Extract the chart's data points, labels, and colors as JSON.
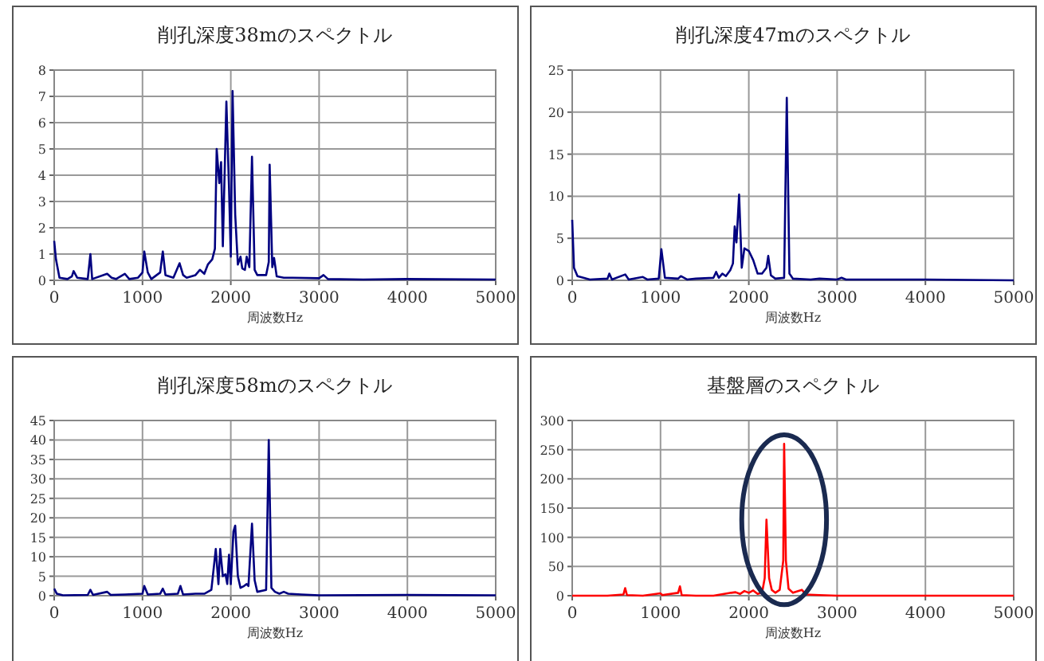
{
  "chart_data": [
    {
      "type": "line",
      "title": "削孔深度38mのスペクトル",
      "xlabel": "周波数Hz",
      "xlim": [
        0,
        5000
      ],
      "xticks": [
        0,
        1000,
        2000,
        3000,
        4000,
        5000
      ],
      "ylim": [
        0,
        8
      ],
      "yticks": [
        0,
        1,
        2,
        3,
        4,
        5,
        6,
        7,
        8
      ],
      "grid": true,
      "marker": "none",
      "series": [
        {
          "color": "#000080",
          "x": [
            0,
            20,
            60,
            150,
            200,
            220,
            260,
            380,
            410,
            430,
            600,
            650,
            700,
            750,
            800,
            850,
            950,
            1000,
            1020,
            1060,
            1100,
            1200,
            1230,
            1260,
            1350,
            1420,
            1460,
            1500,
            1600,
            1650,
            1700,
            1740,
            1790,
            1820,
            1840,
            1870,
            1890,
            1910,
            1950,
            1980,
            2000,
            2020,
            2050,
            2080,
            2110,
            2130,
            2160,
            2180,
            2210,
            2240,
            2270,
            2300,
            2400,
            2430,
            2440,
            2470,
            2490,
            2520,
            2600,
            2700,
            3000,
            3050,
            3100,
            3500,
            4000,
            5000
          ],
          "values": [
            1.5,
            0.8,
            0.1,
            0.05,
            0.15,
            0.35,
            0.1,
            0.05,
            1.0,
            0.05,
            0.25,
            0.1,
            0.05,
            0.15,
            0.25,
            0.05,
            0.1,
            0.3,
            1.1,
            0.3,
            0.05,
            0.3,
            1.1,
            0.2,
            0.1,
            0.65,
            0.2,
            0.1,
            0.2,
            0.4,
            0.25,
            0.6,
            0.8,
            1.2,
            5.0,
            3.7,
            4.5,
            1.3,
            6.8,
            3.5,
            0.9,
            7.2,
            2.5,
            0.6,
            0.9,
            0.45,
            0.4,
            0.9,
            0.5,
            4.7,
            0.4,
            0.2,
            0.2,
            0.7,
            4.4,
            0.5,
            0.85,
            0.15,
            0.1,
            0.1,
            0.08,
            0.2,
            0.05,
            0.03,
            0.05,
            0.03
          ]
        }
      ]
    },
    {
      "type": "line",
      "title": "削孔深度47mのスペクトル",
      "xlabel": "周波数Hz",
      "xlim": [
        0,
        5000
      ],
      "xticks": [
        0,
        1000,
        2000,
        3000,
        4000,
        5000
      ],
      "ylim": [
        0,
        25
      ],
      "yticks": [
        0,
        5,
        10,
        15,
        20,
        25
      ],
      "grid": true,
      "marker": "none",
      "series": [
        {
          "color": "#000080",
          "x": [
            0,
            20,
            60,
            200,
            400,
            420,
            450,
            600,
            640,
            800,
            850,
            980,
            1010,
            1050,
            1200,
            1230,
            1300,
            1400,
            1600,
            1630,
            1660,
            1700,
            1740,
            1790,
            1820,
            1840,
            1860,
            1890,
            1920,
            1950,
            2000,
            2050,
            2100,
            2150,
            2200,
            2220,
            2250,
            2300,
            2400,
            2430,
            2460,
            2500,
            2700,
            2800,
            3000,
            3050,
            3100,
            4000,
            5000
          ],
          "values": [
            7.2,
            1.5,
            0.5,
            0.1,
            0.2,
            0.8,
            0.1,
            0.7,
            0.1,
            0.4,
            0.1,
            0.2,
            3.7,
            0.3,
            0.2,
            0.5,
            0.1,
            0.2,
            0.3,
            1.0,
            0.3,
            0.8,
            0.5,
            1.2,
            2.0,
            6.4,
            4.5,
            10.2,
            1.5,
            3.8,
            3.5,
            2.4,
            0.8,
            0.8,
            1.5,
            2.9,
            0.6,
            0.2,
            0.3,
            21.7,
            0.8,
            0.2,
            0.1,
            0.2,
            0.1,
            0.3,
            0.1,
            0.1,
            0
          ]
        }
      ]
    },
    {
      "type": "line",
      "title": "削孔深度58mのスペクトル",
      "xlabel": "周波数Hz",
      "xlim": [
        0,
        5000
      ],
      "xticks": [
        0,
        1000,
        2000,
        3000,
        4000,
        5000
      ],
      "ylim": [
        0,
        45
      ],
      "yticks": [
        0,
        5,
        10,
        15,
        20,
        25,
        30,
        35,
        40,
        45
      ],
      "grid": true,
      "marker": "none",
      "series": [
        {
          "color": "#000080",
          "x": [
            0,
            30,
            100,
            380,
            410,
            440,
            600,
            640,
            800,
            1000,
            1020,
            1060,
            1200,
            1230,
            1260,
            1400,
            1430,
            1460,
            1600,
            1700,
            1780,
            1830,
            1860,
            1880,
            1910,
            1940,
            1960,
            1980,
            2000,
            2030,
            2050,
            2080,
            2110,
            2150,
            2180,
            2200,
            2240,
            2270,
            2300,
            2400,
            2430,
            2460,
            2500,
            2550,
            2600,
            2650,
            2800,
            3000,
            4000,
            5000
          ],
          "values": [
            1.8,
            0.5,
            0.1,
            0.2,
            1.5,
            0.2,
            1.0,
            0.2,
            0.3,
            0.5,
            2.5,
            0.3,
            0.5,
            1.8,
            0.3,
            0.5,
            2.5,
            0.3,
            0.5,
            0.5,
            1.5,
            12,
            3,
            12,
            5,
            5.5,
            3,
            10.5,
            3,
            16.5,
            18,
            5,
            2,
            2.5,
            3,
            2.5,
            18.5,
            4,
            1.0,
            1.5,
            40,
            2,
            1.0,
            0.5,
            1.0,
            0.5,
            0.3,
            0.1,
            0.2,
            0.1
          ]
        }
      ]
    },
    {
      "type": "line",
      "title": "基盤層のスペクトル",
      "xlabel": "周波数Hz",
      "xlim": [
        0,
        5000
      ],
      "xticks": [
        0,
        1000,
        2000,
        3000,
        4000,
        5000
      ],
      "ylim": [
        0,
        300
      ],
      "yticks": [
        0,
        50,
        100,
        150,
        200,
        250,
        300
      ],
      "grid": true,
      "marker": "none",
      "series": [
        {
          "color": "#ff0000",
          "x": [
            0,
            400,
            580,
            600,
            620,
            800,
            1000,
            1020,
            1200,
            1220,
            1240,
            1400,
            1600,
            1800,
            1850,
            1900,
            1950,
            2000,
            2050,
            2100,
            2150,
            2180,
            2200,
            2230,
            2260,
            2300,
            2350,
            2390,
            2400,
            2420,
            2450,
            2500,
            2600,
            2650,
            2800,
            3000,
            5000
          ],
          "values": [
            0,
            0,
            2,
            13,
            1,
            0,
            4,
            1,
            5,
            16,
            1,
            0,
            0,
            5,
            6,
            3,
            8,
            5,
            9,
            3,
            5,
            30,
            130,
            30,
            10,
            5,
            10,
            60,
            260,
            60,
            12,
            5,
            10,
            2,
            1,
            0,
            0
          ]
        }
      ]
    }
  ]
}
